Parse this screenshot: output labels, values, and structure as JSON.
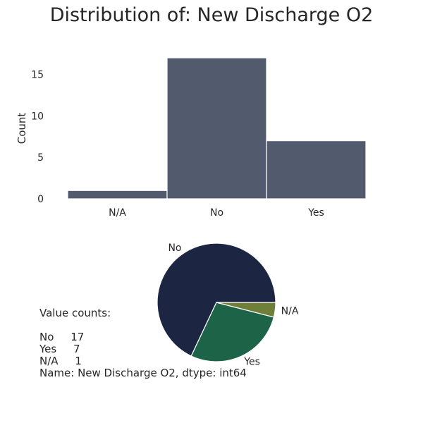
{
  "title": "Distribution of: New Discharge O2",
  "chart_data": [
    {
      "type": "bar",
      "categories": [
        "N/A",
        "No",
        "Yes"
      ],
      "values": [
        1,
        17,
        7
      ],
      "ylabel": "Count",
      "xlabel": "",
      "ylim": [
        0,
        17
      ],
      "yticks": [
        0,
        5,
        10,
        15
      ],
      "grid": false,
      "color": "#525a6e"
    },
    {
      "type": "pie",
      "labels": [
        "No",
        "Yes",
        "N/A"
      ],
      "values": [
        17,
        7,
        1
      ],
      "colors": [
        "#1c2542",
        "#1c6347",
        "#6f7f3a"
      ]
    }
  ],
  "value_counts": {
    "heading": "Value counts:",
    "rows": [
      "No     17",
      "Yes     7",
      "N/A     1"
    ],
    "footer": "Name: New Discharge O2, dtype: int64"
  }
}
